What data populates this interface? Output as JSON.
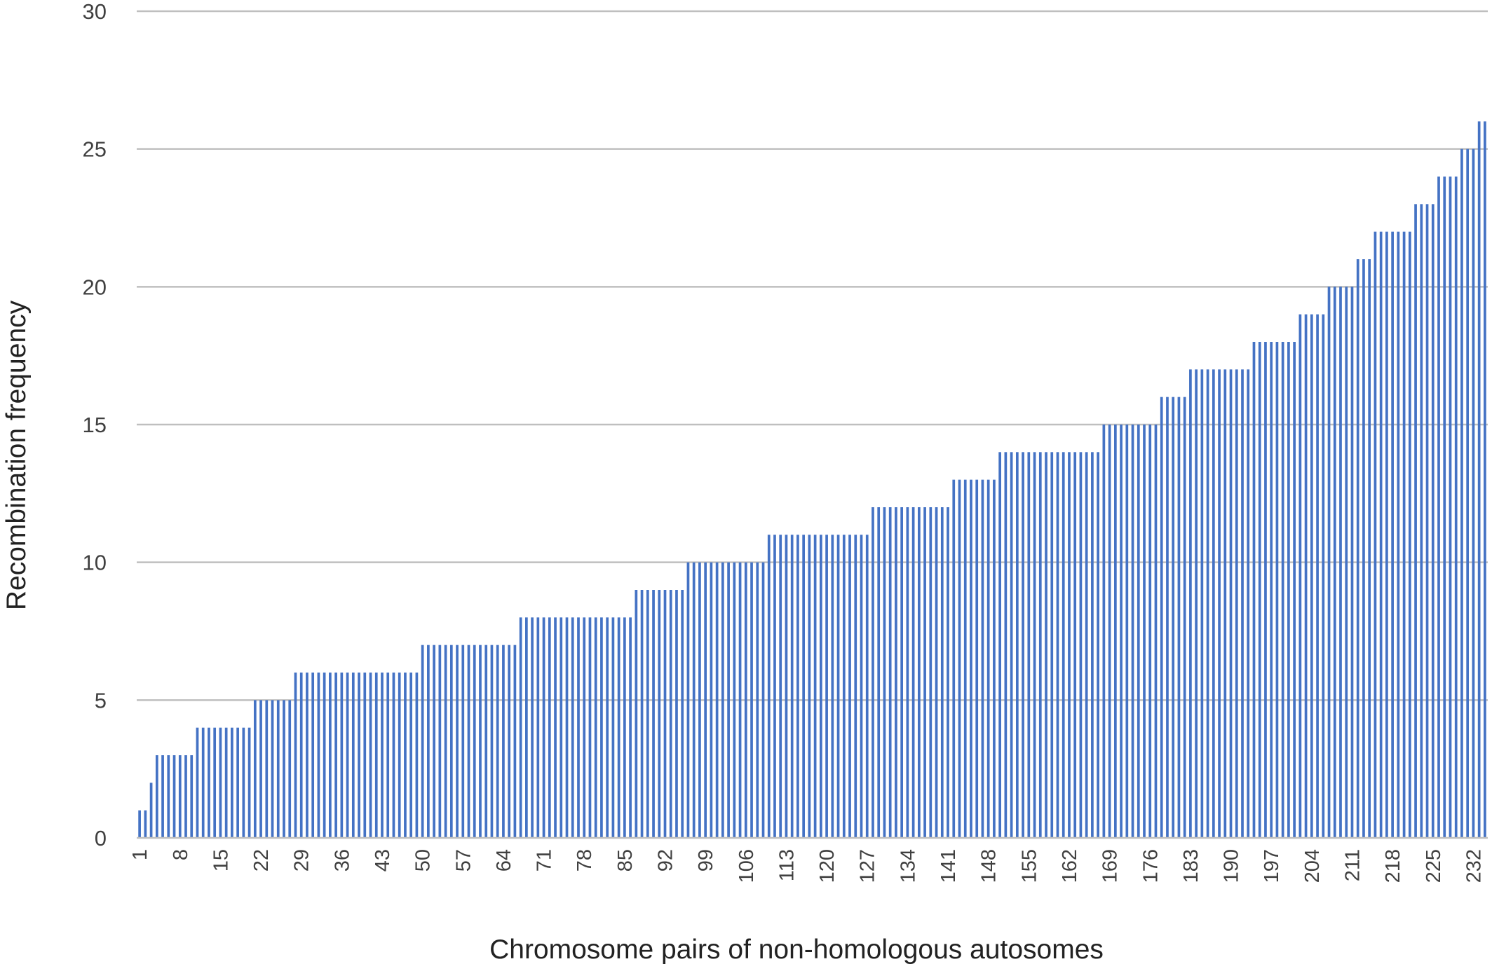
{
  "chart_data": {
    "type": "bar",
    "title": "",
    "xlabel": "Chromosome pairs of non-homologous autosomes",
    "ylabel": "Recombination frequency",
    "ylim": [
      0,
      30
    ],
    "yticks": [
      0,
      5,
      10,
      15,
      20,
      25,
      30
    ],
    "grid": true,
    "legend": "none",
    "bar_color": "#4472C4",
    "grid_color": "#BFBFBF",
    "x_tick_labels": [
      "1",
      "8",
      "15",
      "22",
      "29",
      "36",
      "43",
      "50",
      "57",
      "64",
      "71",
      "78",
      "85",
      "92",
      "99",
      "106",
      "113",
      "120",
      "127",
      "134",
      "141",
      "148",
      "155",
      "162",
      "169",
      "176",
      "183",
      "190",
      "197",
      "204",
      "211",
      "218",
      "225",
      "232"
    ],
    "x_tick_label_values": [
      1,
      8,
      15,
      22,
      29,
      36,
      43,
      50,
      57,
      64,
      71,
      78,
      85,
      92,
      99,
      106,
      113,
      120,
      127,
      134,
      141,
      148,
      155,
      162,
      169,
      176,
      183,
      190,
      197,
      204,
      211,
      218,
      225,
      232
    ],
    "runs": [
      {
        "value": 1,
        "count": 2
      },
      {
        "value": 2,
        "count": 1
      },
      {
        "value": 3,
        "count": 7
      },
      {
        "value": 4,
        "count": 10
      },
      {
        "value": 5,
        "count": 7
      },
      {
        "value": 6,
        "count": 22
      },
      {
        "value": 7,
        "count": 17
      },
      {
        "value": 8,
        "count": 20
      },
      {
        "value": 9,
        "count": 9
      },
      {
        "value": 10,
        "count": 14
      },
      {
        "value": 11,
        "count": 18
      },
      {
        "value": 12,
        "count": 14
      },
      {
        "value": 13,
        "count": 8
      },
      {
        "value": 14,
        "count": 18
      },
      {
        "value": 15,
        "count": 10
      },
      {
        "value": 16,
        "count": 5
      },
      {
        "value": 17,
        "count": 11
      },
      {
        "value": 18,
        "count": 8
      },
      {
        "value": 19,
        "count": 5
      },
      {
        "value": 20,
        "count": 5
      },
      {
        "value": 21,
        "count": 3
      },
      {
        "value": 22,
        "count": 7
      },
      {
        "value": 23,
        "count": 4
      },
      {
        "value": 24,
        "count": 4
      },
      {
        "value": 25,
        "count": 3
      },
      {
        "value": 26,
        "count": 2
      }
    ]
  }
}
